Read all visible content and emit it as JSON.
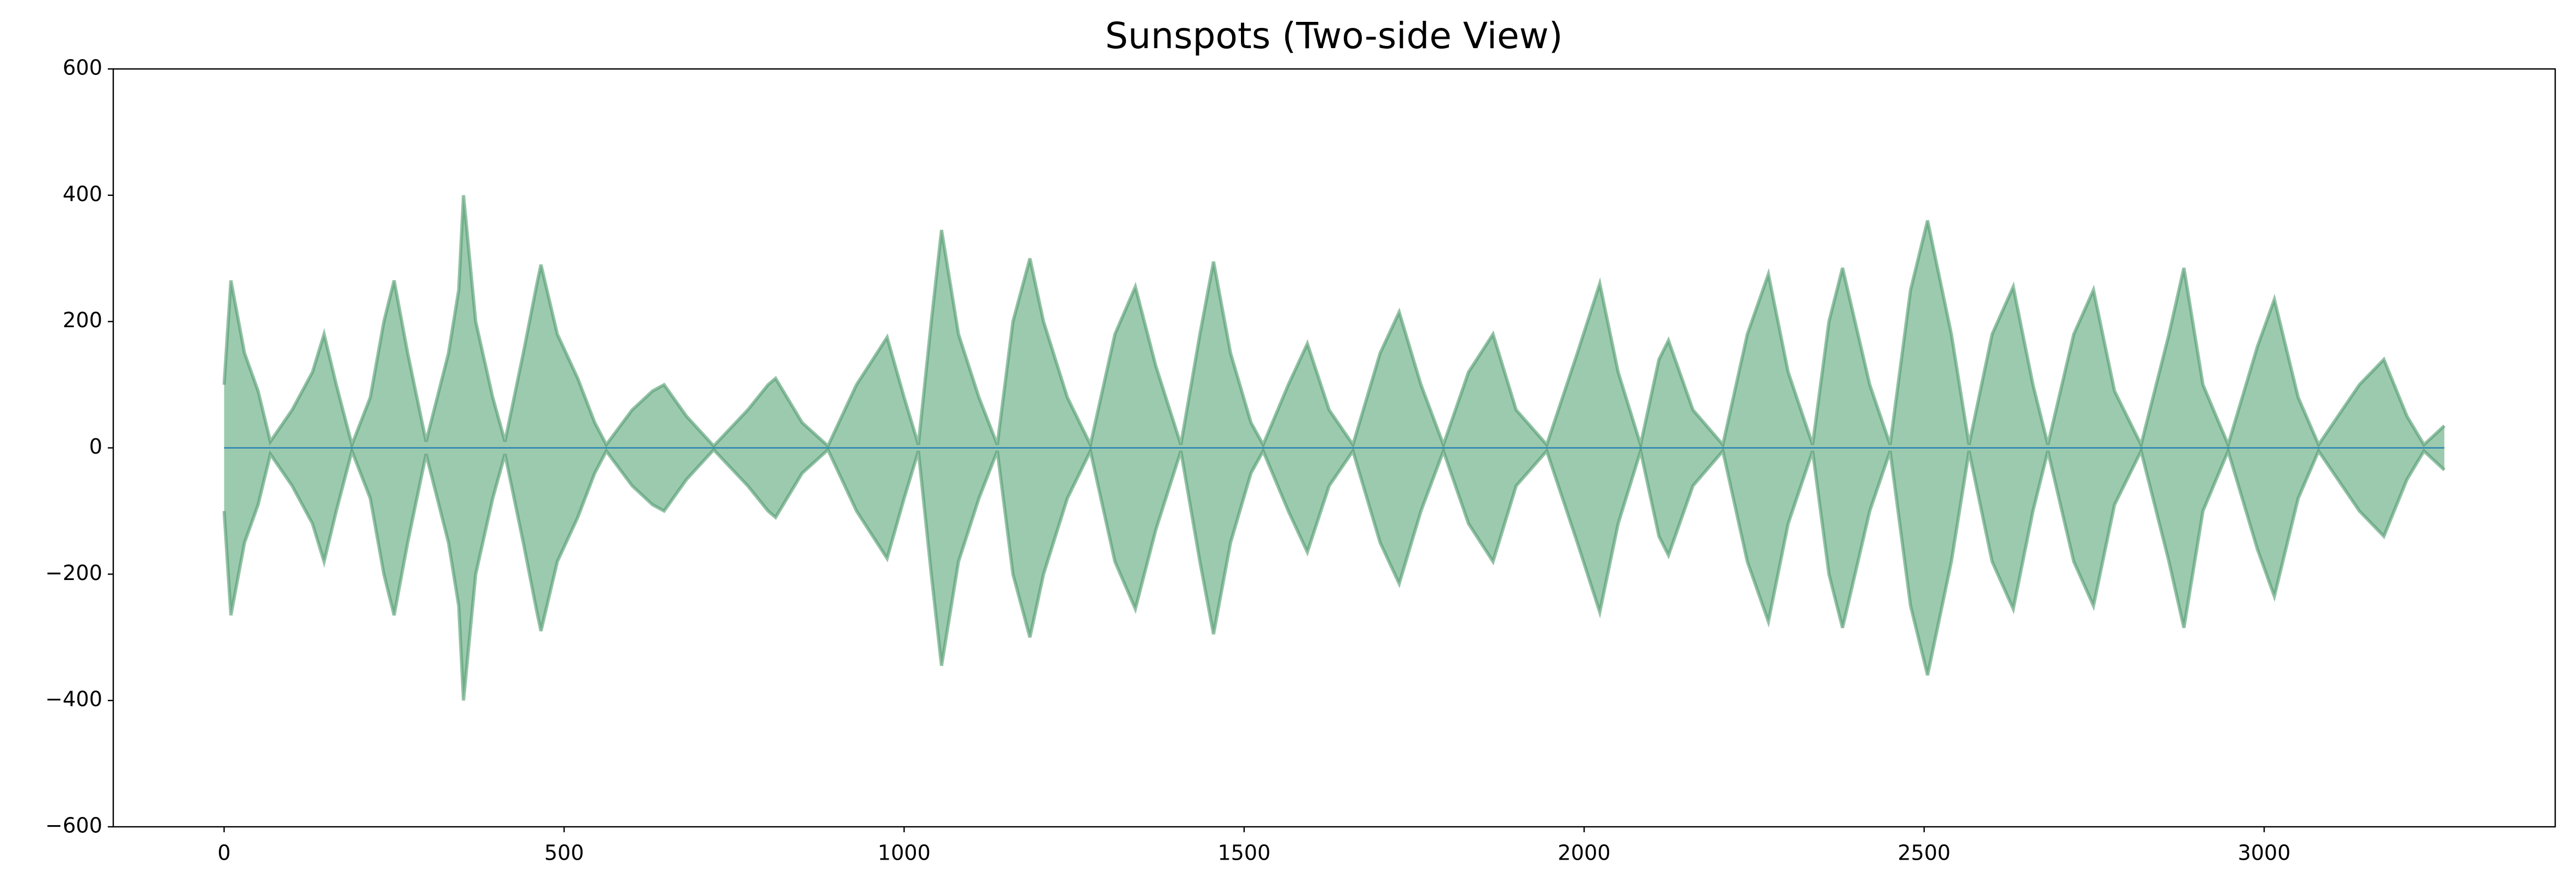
{
  "chart_data": {
    "type": "mirror-area",
    "title": "Sunspots (Two-side View)",
    "x": [
      0,
      10,
      30,
      50,
      68,
      100,
      130,
      147,
      165,
      188,
      215,
      235,
      250,
      270,
      297,
      330,
      345,
      352,
      370,
      395,
      413,
      440,
      460,
      466,
      490,
      520,
      545,
      562,
      600,
      630,
      647,
      680,
      720,
      770,
      800,
      811,
      850,
      888,
      930,
      960,
      975,
      1000,
      1021,
      1040,
      1055,
      1080,
      1110,
      1137,
      1160,
      1185,
      1205,
      1240,
      1274,
      1310,
      1340,
      1370,
      1407,
      1435,
      1455,
      1480,
      1510,
      1528,
      1565,
      1593,
      1625,
      1660,
      1700,
      1728,
      1760,
      1793,
      1830,
      1866,
      1900,
      1945,
      1990,
      2023,
      2050,
      2083,
      2110,
      2124,
      2160,
      2204,
      2240,
      2271,
      2300,
      2336,
      2360,
      2380,
      2420,
      2450,
      2480,
      2505,
      2540,
      2566,
      2600,
      2631,
      2660,
      2682,
      2720,
      2749,
      2780,
      2819,
      2860,
      2882,
      2910,
      2947,
      2990,
      3015,
      3050,
      3080,
      3140,
      3176,
      3210,
      3235,
      3265
    ],
    "values": [
      100,
      265,
      150,
      90,
      10,
      60,
      120,
      180,
      100,
      5,
      80,
      200,
      265,
      150,
      10,
      150,
      250,
      400,
      200,
      80,
      10,
      150,
      260,
      290,
      180,
      110,
      40,
      5,
      60,
      90,
      100,
      50,
      3,
      60,
      100,
      110,
      40,
      3,
      100,
      150,
      175,
      80,
      5,
      200,
      345,
      180,
      80,
      5,
      200,
      300,
      200,
      80,
      5,
      180,
      255,
      130,
      5,
      180,
      295,
      150,
      40,
      5,
      100,
      165,
      60,
      5,
      150,
      215,
      100,
      5,
      120,
      180,
      60,
      5,
      150,
      260,
      120,
      5,
      140,
      170,
      60,
      5,
      180,
      275,
      120,
      5,
      200,
      285,
      100,
      5,
      250,
      360,
      180,
      5,
      180,
      255,
      100,
      5,
      180,
      250,
      90,
      5,
      180,
      285,
      100,
      5,
      160,
      235,
      80,
      5,
      100,
      140,
      50,
      5,
      35
    ],
    "color": "#5aa67a",
    "line_color": "#4f9a6c",
    "zero_line_color": "#3a8fb0",
    "xlim": [
      -163,
      3428
    ],
    "ylim": [
      -600,
      600
    ],
    "xticks": [
      0,
      500,
      1000,
      1500,
      2000,
      2500,
      3000
    ],
    "yticks": [
      {
        "value": -600,
        "label": "−600"
      },
      {
        "value": -400,
        "label": "−400"
      },
      {
        "value": -200,
        "label": "−200"
      },
      0,
      200,
      400,
      600
    ]
  }
}
